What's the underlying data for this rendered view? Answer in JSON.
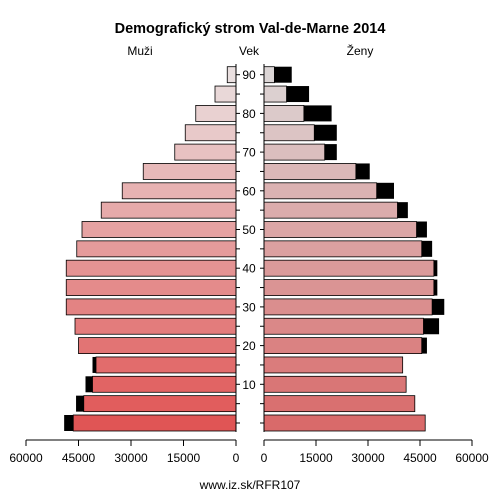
{
  "chart_data": {
    "type": "bar",
    "orientation": "horizontal",
    "title": "Demografický strom Val-de-Marne 2014",
    "headers": {
      "men": "Muži",
      "age": "Vek",
      "women": "Ženy"
    },
    "age_ticks": [
      10,
      20,
      30,
      40,
      50,
      60,
      70,
      80,
      90
    ],
    "x_ticks_men": [
      "60000",
      "45000",
      "30000",
      "15000",
      "0"
    ],
    "x_ticks_women": [
      "0",
      "15000",
      "30000",
      "45000",
      "60000"
    ],
    "xlim": [
      0,
      60000
    ],
    "age_groups": [
      "0-4",
      "5-9",
      "10-14",
      "15-19",
      "20-24",
      "25-29",
      "30-34",
      "35-39",
      "40-44",
      "45-49",
      "50-54",
      "55-59",
      "60-64",
      "65-69",
      "70-74",
      "75-79",
      "80-84",
      "85-89",
      "90+"
    ],
    "series": [
      {
        "side": "men",
        "segment": "native",
        "values": [
          46500,
          43500,
          41000,
          40000,
          45000,
          46000,
          48500,
          48500,
          48500,
          45500,
          44000,
          38500,
          32500,
          26500,
          17500,
          14500,
          11500,
          6000,
          2500
        ]
      },
      {
        "side": "men",
        "segment": "foreign",
        "values": [
          2600,
          2200,
          2000,
          1000,
          0,
          0,
          0,
          0,
          0,
          0,
          0,
          0,
          0,
          0,
          0,
          0,
          0,
          0,
          0
        ]
      },
      {
        "side": "women",
        "segment": "native",
        "values": [
          46500,
          43500,
          41000,
          40000,
          45500,
          46000,
          48500,
          49000,
          49000,
          45500,
          44000,
          38500,
          32500,
          26500,
          17500,
          14500,
          11500,
          6500,
          3000
        ]
      },
      {
        "side": "women",
        "segment": "foreign",
        "values": [
          0,
          0,
          0,
          0,
          1500,
          4500,
          3500,
          1000,
          1000,
          3000,
          3000,
          3000,
          5000,
          4000,
          3500,
          6500,
          8000,
          6500,
          5000
        ]
      }
    ]
  },
  "footer": "www.iz.sk/RFR107"
}
